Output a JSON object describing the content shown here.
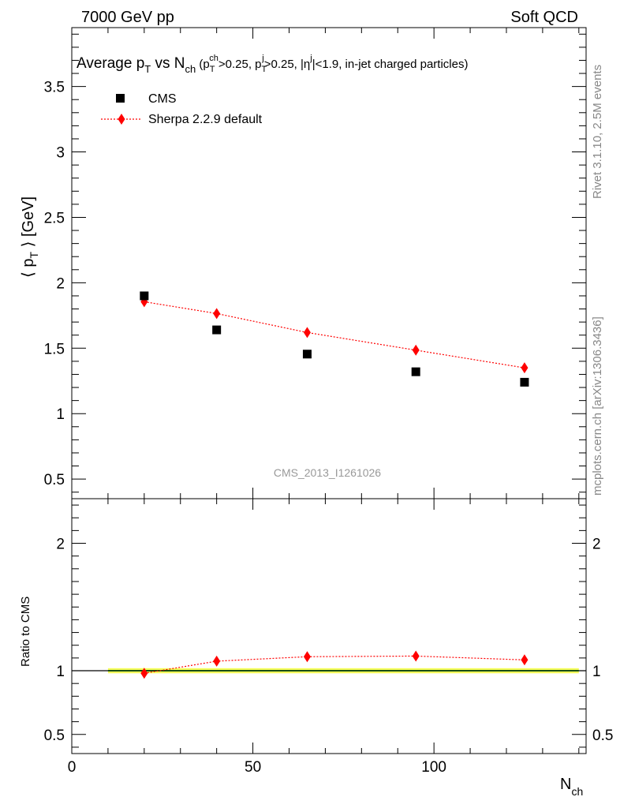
{
  "header": {
    "energy_label": "7000 GeV pp",
    "process_label": "Soft QCD"
  },
  "side": {
    "rivet_label": "Rivet 3.1.10,  2.5M events",
    "mcplots_label": "mcplots.cern.ch [arXiv:1306.3436]"
  },
  "colors": {
    "data": "#000000",
    "mc": "#ff0000",
    "band_outer": "#f5ff5a",
    "band_inner": "#33cc33"
  },
  "chart_data": [
    {
      "type": "scatter",
      "panel": "main",
      "title_parts": {
        "t1": "Average p",
        "t1_sub": "T",
        "t2": " vs N",
        "t2_sub": "ch",
        "t3": " (p",
        "t3_sub": "T",
        "t3_sup": "ch",
        "t4": ">0.25, p",
        "t4_sub": "T",
        "t4_sup": "j",
        "t5": ">0.25, |η",
        "t5_sup": "j",
        "t6": "|<1.9, in-jet charged particles)"
      },
      "ylabel_parts": {
        "pre": "⟨ p",
        "sub": "T",
        "post": " ⟩ [GeV]"
      },
      "watermark": "CMS_2013_I1261026",
      "xlim": [
        0,
        142
      ],
      "ylim": [
        0.35,
        3.95
      ],
      "yticks": [
        0.5,
        1,
        1.5,
        2,
        2.5,
        3,
        3.5
      ],
      "ytick_labels": [
        "0.5",
        "1",
        "1.5",
        "2",
        "2.5",
        "3",
        "3.5"
      ],
      "series": [
        {
          "name": "CMS",
          "marker": "square",
          "x": [
            20,
            40,
            65,
            95,
            125
          ],
          "y": [
            1.9,
            1.64,
            1.455,
            1.32,
            1.24
          ]
        },
        {
          "name": "Sherpa 2.2.9 default",
          "marker": "diamond",
          "line": "dotted",
          "x": [
            20,
            40,
            65,
            95,
            125
          ],
          "y": [
            1.855,
            1.765,
            1.62,
            1.485,
            1.35
          ]
        }
      ],
      "legend_position": "top-left"
    },
    {
      "type": "line",
      "panel": "ratio",
      "ylabel": "Ratio to CMS",
      "xlabel_parts": {
        "main": "N",
        "sub": "ch"
      },
      "xlim": [
        0,
        142
      ],
      "ylim": [
        0.35,
        2.35
      ],
      "xticks": [
        0,
        50,
        100
      ],
      "xtick_labels": [
        "0",
        "50",
        "100"
      ],
      "yticks": [
        0.5,
        1,
        2
      ],
      "ytick_labels": [
        "0.5",
        "1",
        "2"
      ],
      "band": {
        "x": [
          10,
          140
        ],
        "outer": [
          0.98,
          1.02
        ],
        "inner": [
          0.994,
          1.006
        ]
      },
      "series": [
        {
          "name": "Sherpa 2.2.9 default",
          "marker": "diamond",
          "line": "dotted",
          "x": [
            20,
            40,
            65,
            95,
            125
          ],
          "y": [
            0.98,
            1.075,
            1.11,
            1.115,
            1.085
          ]
        }
      ]
    }
  ]
}
